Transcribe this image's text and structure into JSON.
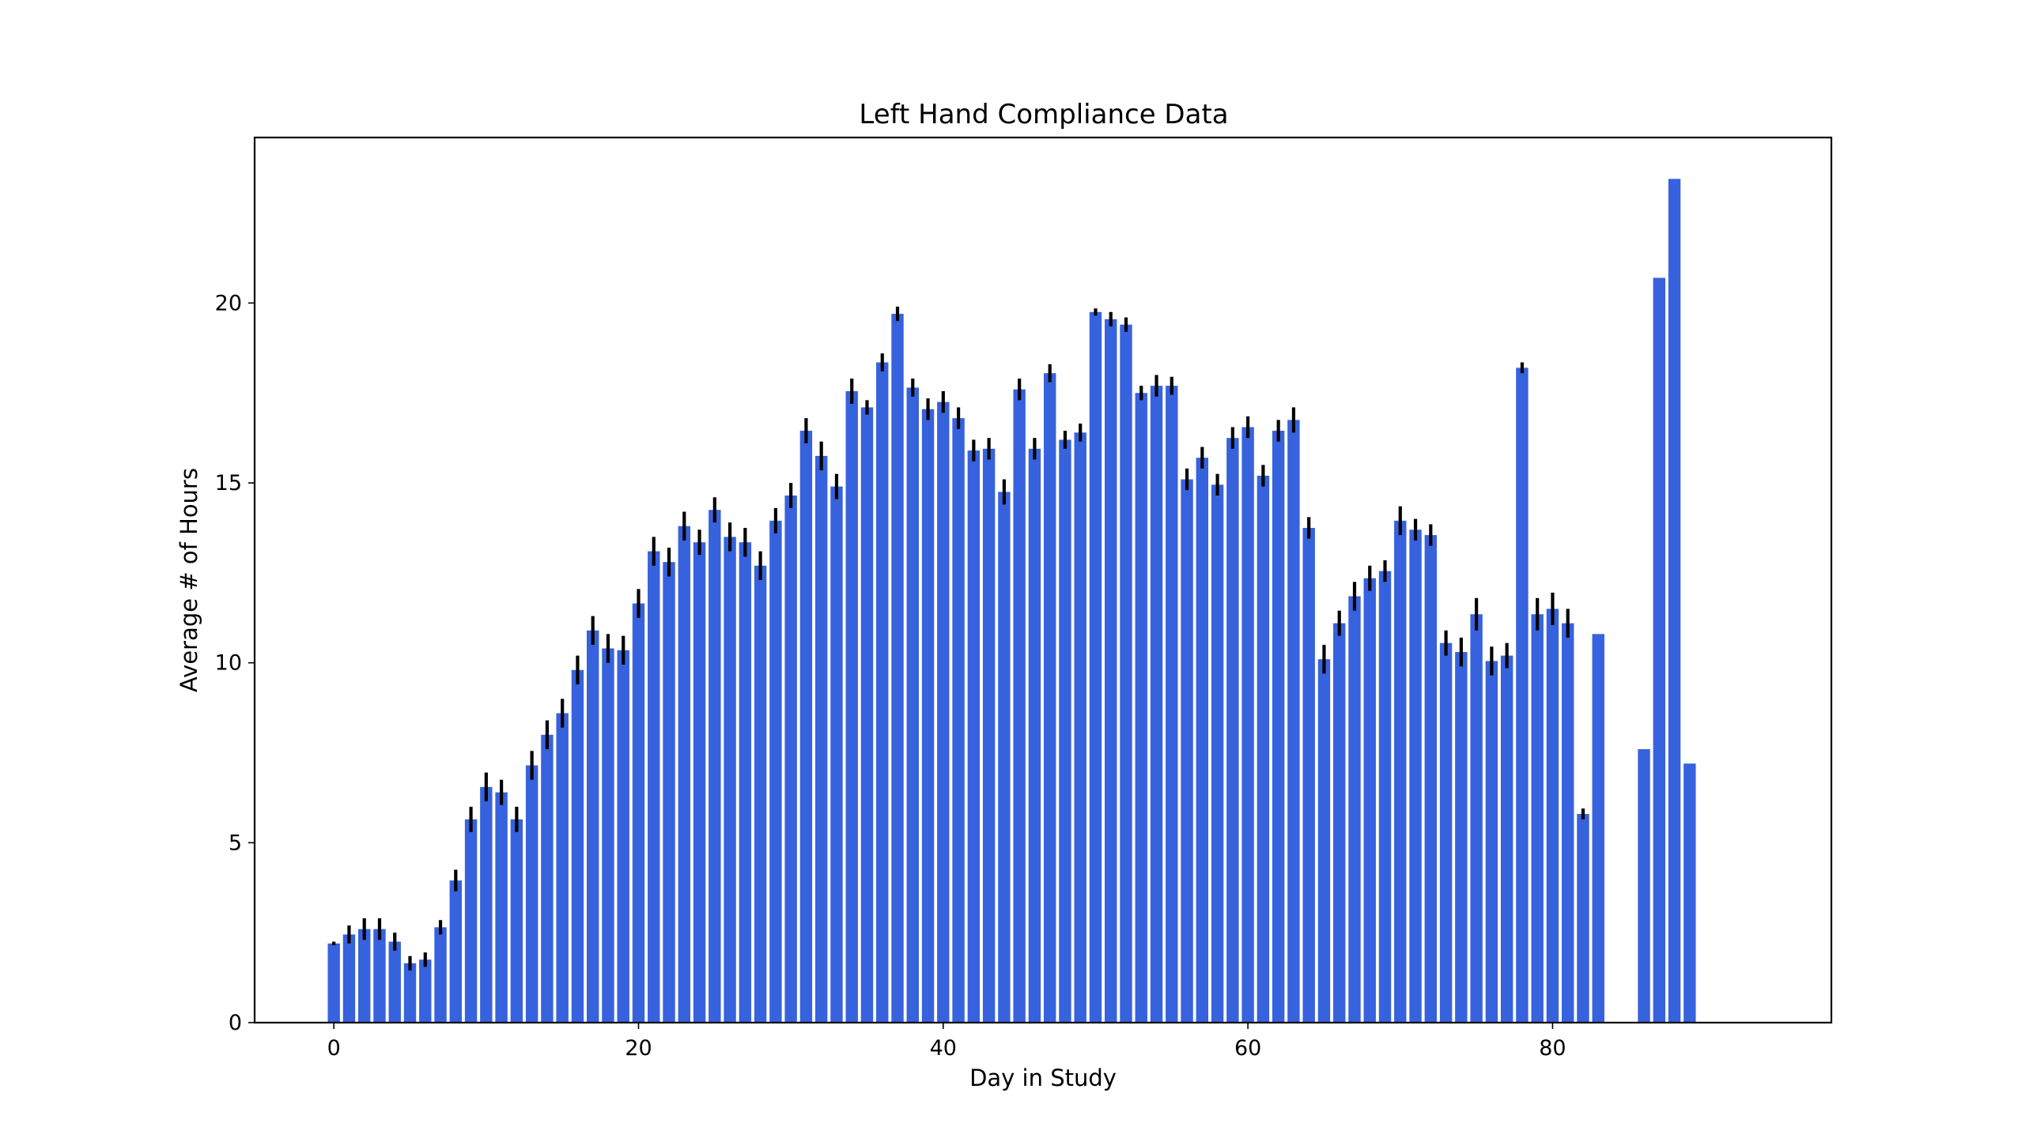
{
  "chart_data": {
    "type": "bar",
    "title": "Left Hand Compliance Data",
    "xlabel": "Day in Study",
    "ylabel": "Average # of Hours",
    "xlim": [
      -5.2,
      98.3
    ],
    "ylim": [
      0,
      24.6
    ],
    "xticks": [
      0,
      20,
      40,
      60,
      80
    ],
    "yticks": [
      0,
      5,
      10,
      15,
      20
    ],
    "grid": false,
    "legend": "none",
    "bar_color": "#3762de",
    "error_color": "#000000",
    "x": [
      0,
      1,
      2,
      3,
      4,
      5,
      6,
      7,
      8,
      9,
      10,
      11,
      12,
      13,
      14,
      15,
      16,
      17,
      18,
      19,
      20,
      21,
      22,
      23,
      24,
      25,
      26,
      27,
      28,
      29,
      30,
      31,
      32,
      33,
      34,
      35,
      36,
      37,
      38,
      39,
      40,
      41,
      42,
      43,
      44,
      45,
      46,
      47,
      48,
      49,
      50,
      51,
      52,
      53,
      54,
      55,
      56,
      57,
      58,
      59,
      60,
      61,
      62,
      63,
      64,
      65,
      66,
      67,
      68,
      69,
      70,
      71,
      72,
      73,
      74,
      75,
      76,
      77,
      78,
      79,
      80,
      81,
      82,
      83,
      84,
      85,
      86,
      87,
      88,
      89
    ],
    "values": [
      2.2,
      2.45,
      2.6,
      2.6,
      2.25,
      1.65,
      1.75,
      2.65,
      3.95,
      5.65,
      6.55,
      6.4,
      5.65,
      7.15,
      8.0,
      8.6,
      9.8,
      10.9,
      10.4,
      10.35,
      11.65,
      13.1,
      12.8,
      13.8,
      13.35,
      14.25,
      13.5,
      13.35,
      12.7,
      13.95,
      14.65,
      16.45,
      15.75,
      14.9,
      17.55,
      17.1,
      18.35,
      19.7,
      17.65,
      17.05,
      17.25,
      16.8,
      15.9,
      15.95,
      14.75,
      17.6,
      15.95,
      18.05,
      16.2,
      16.4,
      19.75,
      19.55,
      19.4,
      17.5,
      17.7,
      17.7,
      15.1,
      15.7,
      14.95,
      16.25,
      16.55,
      15.2,
      16.45,
      16.75,
      13.75,
      10.1,
      11.1,
      11.85,
      12.35,
      12.55,
      13.95,
      13.7,
      13.55,
      10.55,
      10.3,
      11.35,
      10.05,
      10.2,
      18.2,
      11.35,
      11.5,
      11.1,
      5.8,
      10.8,
      null,
      null,
      7.6,
      20.7,
      23.45,
      7.2
    ],
    "errors": [
      0.05,
      0.25,
      0.3,
      0.3,
      0.25,
      0.2,
      0.2,
      0.2,
      0.3,
      0.35,
      0.4,
      0.35,
      0.35,
      0.4,
      0.4,
      0.4,
      0.4,
      0.4,
      0.4,
      0.4,
      0.4,
      0.4,
      0.4,
      0.4,
      0.35,
      0.35,
      0.4,
      0.4,
      0.4,
      0.35,
      0.35,
      0.35,
      0.4,
      0.35,
      0.35,
      0.2,
      0.25,
      0.2,
      0.25,
      0.3,
      0.3,
      0.3,
      0.3,
      0.3,
      0.35,
      0.3,
      0.3,
      0.25,
      0.25,
      0.25,
      0.1,
      0.2,
      0.2,
      0.2,
      0.3,
      0.25,
      0.3,
      0.3,
      0.3,
      0.3,
      0.3,
      0.3,
      0.3,
      0.35,
      0.3,
      0.4,
      0.35,
      0.4,
      0.35,
      0.3,
      0.4,
      0.3,
      0.3,
      0.35,
      0.4,
      0.45,
      0.4,
      0.35,
      0.15,
      0.45,
      0.45,
      0.4,
      0.15,
      0,
      null,
      null,
      0,
      0,
      0,
      0
    ]
  }
}
